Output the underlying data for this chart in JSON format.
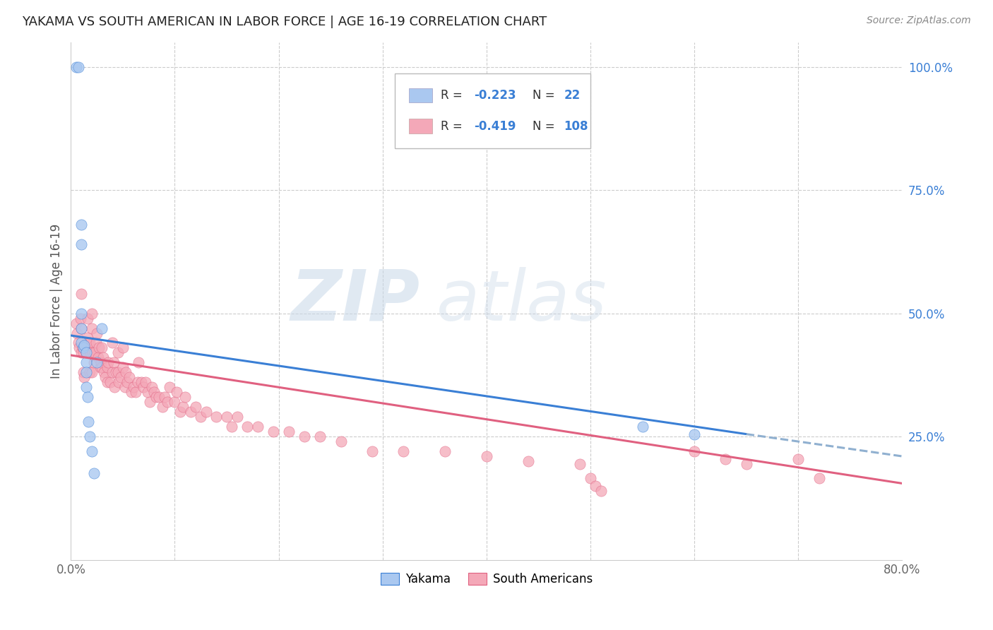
{
  "title": "YAKAMA VS SOUTH AMERICAN IN LABOR FORCE | AGE 16-19 CORRELATION CHART",
  "source": "Source: ZipAtlas.com",
  "ylabel": "In Labor Force | Age 16-19",
  "xlim": [
    0.0,
    0.8
  ],
  "ylim": [
    0.0,
    1.05
  ],
  "yakama_color": "#aac8f0",
  "sa_color": "#f4a8b8",
  "blue_line_color": "#3a7fd5",
  "pink_line_color": "#e06080",
  "dashed_line_color": "#90b0d0",
  "legend_color": "#3a7fd5",
  "watermark": "ZIPatlas",
  "yakama_x": [
    0.005,
    0.007,
    0.01,
    0.01,
    0.01,
    0.01,
    0.01,
    0.012,
    0.013,
    0.015,
    0.015,
    0.015,
    0.015,
    0.016,
    0.017,
    0.018,
    0.02,
    0.022,
    0.025,
    0.03,
    0.55,
    0.6
  ],
  "yakama_y": [
    1.0,
    1.0,
    0.68,
    0.64,
    0.5,
    0.47,
    0.44,
    0.43,
    0.435,
    0.42,
    0.4,
    0.38,
    0.35,
    0.33,
    0.28,
    0.25,
    0.22,
    0.175,
    0.4,
    0.47,
    0.27,
    0.255
  ],
  "sa_x": [
    0.005,
    0.006,
    0.007,
    0.008,
    0.009,
    0.01,
    0.01,
    0.01,
    0.011,
    0.012,
    0.012,
    0.013,
    0.014,
    0.015,
    0.016,
    0.016,
    0.017,
    0.018,
    0.018,
    0.019,
    0.02,
    0.02,
    0.02,
    0.021,
    0.022,
    0.023,
    0.024,
    0.025,
    0.026,
    0.027,
    0.028,
    0.029,
    0.03,
    0.03,
    0.031,
    0.032,
    0.033,
    0.035,
    0.035,
    0.036,
    0.038,
    0.04,
    0.04,
    0.041,
    0.042,
    0.043,
    0.045,
    0.045,
    0.046,
    0.048,
    0.05,
    0.05,
    0.052,
    0.053,
    0.054,
    0.056,
    0.058,
    0.06,
    0.062,
    0.064,
    0.065,
    0.068,
    0.07,
    0.072,
    0.074,
    0.076,
    0.078,
    0.08,
    0.082,
    0.085,
    0.088,
    0.09,
    0.093,
    0.095,
    0.1,
    0.102,
    0.105,
    0.108,
    0.11,
    0.115,
    0.12,
    0.125,
    0.13,
    0.14,
    0.15,
    0.155,
    0.16,
    0.17,
    0.18,
    0.195,
    0.21,
    0.225,
    0.24,
    0.26,
    0.29,
    0.32,
    0.36,
    0.4,
    0.44,
    0.49,
    0.5,
    0.505,
    0.51,
    0.6,
    0.63,
    0.65,
    0.7,
    0.72
  ],
  "sa_y": [
    0.48,
    0.46,
    0.44,
    0.43,
    0.49,
    0.47,
    0.54,
    0.42,
    0.43,
    0.42,
    0.38,
    0.37,
    0.43,
    0.42,
    0.49,
    0.45,
    0.44,
    0.38,
    0.44,
    0.42,
    0.5,
    0.47,
    0.38,
    0.42,
    0.4,
    0.42,
    0.44,
    0.46,
    0.41,
    0.43,
    0.39,
    0.4,
    0.43,
    0.39,
    0.41,
    0.38,
    0.37,
    0.39,
    0.36,
    0.4,
    0.36,
    0.44,
    0.38,
    0.4,
    0.35,
    0.38,
    0.42,
    0.38,
    0.36,
    0.37,
    0.43,
    0.39,
    0.35,
    0.38,
    0.36,
    0.37,
    0.34,
    0.35,
    0.34,
    0.36,
    0.4,
    0.36,
    0.35,
    0.36,
    0.34,
    0.32,
    0.35,
    0.34,
    0.33,
    0.33,
    0.31,
    0.33,
    0.32,
    0.35,
    0.32,
    0.34,
    0.3,
    0.31,
    0.33,
    0.3,
    0.31,
    0.29,
    0.3,
    0.29,
    0.29,
    0.27,
    0.29,
    0.27,
    0.27,
    0.26,
    0.26,
    0.25,
    0.25,
    0.24,
    0.22,
    0.22,
    0.22,
    0.21,
    0.2,
    0.195,
    0.165,
    0.15,
    0.14,
    0.22,
    0.205,
    0.195,
    0.205,
    0.165
  ],
  "blue_line_x0": 0.0,
  "blue_line_y0": 0.455,
  "blue_line_x1": 0.65,
  "blue_line_y1": 0.255,
  "dash_line_x0": 0.65,
  "dash_line_y0": 0.255,
  "dash_line_x1": 0.8,
  "dash_line_y1": 0.21,
  "pink_line_x0": 0.0,
  "pink_line_y0": 0.415,
  "pink_line_x1": 0.8,
  "pink_line_y1": 0.155
}
